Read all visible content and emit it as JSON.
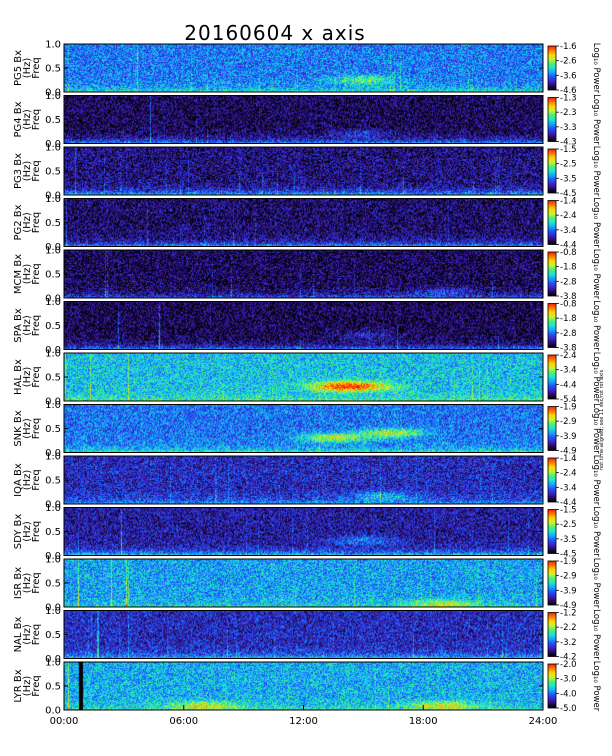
{
  "chart_data": {
    "type": "heatmap",
    "title": "20160604 x axis",
    "x_ticks": [
      "00:00",
      "06:00",
      "12:00",
      "18:00",
      "24:00"
    ],
    "xlim": [
      "00:00",
      "24:00"
    ],
    "ylim": [
      0.0,
      1.0
    ],
    "y_ticks": [
      "0.0",
      "0.5",
      "1.0"
    ],
    "ylabel_line2": "(Hz)",
    "ylabel_line3": "Freq",
    "colorbar_label": "Log₁₀ Power",
    "side_note": "not time-aligned; see 11 sec/rot rot axis",
    "colormap": [
      "#000000",
      "#2a0a66",
      "#3a23c8",
      "#1f55ff",
      "#13a7ff",
      "#19e6d2",
      "#4cf07a",
      "#c8f52a",
      "#ffd400",
      "#ff7a00",
      "#ff1a00"
    ],
    "panels": [
      {
        "station": "PG5",
        "ylabel": "PG5 Bx",
        "cbar_ticks": [
          "-1.6",
          "-2.6",
          "-3.6",
          "-4.6"
        ],
        "vmax": -1.6,
        "vmin": -4.6,
        "base_level": 0.34,
        "low_freq_boost": 0.18,
        "features": [
          {
            "t": 15.0,
            "f": 0.25,
            "level": 0.55
          }
        ]
      },
      {
        "station": "PG4",
        "ylabel": "PG4 Bx",
        "cbar_ticks": [
          "-1.3",
          "-2.3",
          "-3.3",
          "-4.3"
        ],
        "vmax": -1.3,
        "vmin": -4.3,
        "base_level": 0.08,
        "low_freq_boost": 0.28,
        "features": [
          {
            "t": 15.0,
            "f": 0.2,
            "level": 0.3
          }
        ]
      },
      {
        "station": "PG3",
        "ylabel": "PG3 Bx",
        "cbar_ticks": [
          "-1.5",
          "-2.5",
          "-3.5",
          "-4.5"
        ],
        "vmax": -1.5,
        "vmin": -4.5,
        "base_level": 0.12,
        "low_freq_boost": 0.3,
        "features": []
      },
      {
        "station": "PG2",
        "ylabel": "PG2 Bx",
        "cbar_ticks": [
          "-1.4",
          "-2.4",
          "-3.4",
          "-4.4"
        ],
        "vmax": -1.4,
        "vmin": -4.4,
        "base_level": 0.1,
        "low_freq_boost": 0.28,
        "features": []
      },
      {
        "station": "MCM",
        "ylabel": "MCM Bx",
        "cbar_ticks": [
          "-0.8",
          "-1.8",
          "-2.8",
          "-3.8"
        ],
        "vmax": -0.8,
        "vmin": -3.8,
        "base_level": 0.08,
        "low_freq_boost": 0.2,
        "features": [
          {
            "t": 19.0,
            "f": 0.12,
            "level": 0.3
          }
        ]
      },
      {
        "station": "SPA",
        "ylabel": "SPA Bx",
        "cbar_ticks": [
          "-0.8",
          "-1.8",
          "-2.8",
          "-3.8"
        ],
        "vmax": -0.8,
        "vmin": -3.8,
        "base_level": 0.07,
        "low_freq_boost": 0.26,
        "features": [
          {
            "t": 15.0,
            "f": 0.3,
            "level": 0.28
          }
        ]
      },
      {
        "station": "HAL",
        "ylabel": "HAL Bx",
        "cbar_ticks": [
          "-2.4",
          "-3.4",
          "-4.4",
          "-5.4"
        ],
        "vmax": -2.4,
        "vmin": -5.4,
        "base_level": 0.45,
        "low_freq_boost": 0.12,
        "features": [
          {
            "t": 13.8,
            "f": 0.3,
            "level": 0.8
          },
          {
            "t": 15.0,
            "f": 0.3,
            "level": 0.68
          }
        ]
      },
      {
        "station": "SNK",
        "ylabel": "SNK Bx",
        "cbar_ticks": [
          "-1.9",
          "-2.9",
          "-3.9",
          "-4.9"
        ],
        "vmax": -1.9,
        "vmin": -4.9,
        "base_level": 0.33,
        "low_freq_boost": 0.22,
        "features": [
          {
            "t": 13.5,
            "f": 0.3,
            "level": 0.82
          },
          {
            "t": 16.5,
            "f": 0.4,
            "level": 0.82
          }
        ]
      },
      {
        "station": "IQA",
        "ylabel": "IQA Bx",
        "cbar_ticks": [
          "-1.4",
          "-2.4",
          "-3.4",
          "-4.4"
        ],
        "vmax": -1.4,
        "vmin": -4.4,
        "base_level": 0.2,
        "low_freq_boost": 0.2,
        "features": [
          {
            "t": 16.0,
            "f": 0.15,
            "level": 0.5
          }
        ]
      },
      {
        "station": "SDY",
        "ylabel": "SDY Bx",
        "cbar_ticks": [
          "-1.5",
          "-2.5",
          "-3.5",
          "-4.5"
        ],
        "vmax": -1.5,
        "vmin": -4.5,
        "base_level": 0.16,
        "low_freq_boost": 0.3,
        "features": [
          {
            "t": 15.0,
            "f": 0.3,
            "level": 0.4
          }
        ]
      },
      {
        "station": "ISR",
        "ylabel": "ISR Bx",
        "cbar_ticks": [
          "-1.9",
          "-2.9",
          "-3.9",
          "-4.9"
        ],
        "vmax": -1.9,
        "vmin": -4.9,
        "base_level": 0.4,
        "low_freq_boost": 0.1,
        "features": [
          {
            "t": 19.0,
            "f": 0.05,
            "level": 0.6
          }
        ]
      },
      {
        "station": "NAL",
        "ylabel": "NAL Bx",
        "cbar_ticks": [
          "-1.2",
          "-2.2",
          "-3.2",
          "-4.2"
        ],
        "vmax": -1.2,
        "vmin": -4.2,
        "base_level": 0.2,
        "low_freq_boost": 0.24,
        "features": []
      },
      {
        "station": "LYR",
        "ylabel": "LYR Bx",
        "cbar_ticks": [
          "-2.0",
          "-3.0",
          "-4.0",
          "-5.0"
        ],
        "vmax": -2.0,
        "vmin": -5.0,
        "base_level": 0.42,
        "low_freq_boost": 0.12,
        "features": [
          {
            "t": 7.0,
            "f": 0.08,
            "level": 0.6
          },
          {
            "t": 19.0,
            "f": 0.08,
            "level": 0.6
          }
        ],
        "data_gap": [
          "00:45",
          "00:55"
        ]
      }
    ]
  }
}
